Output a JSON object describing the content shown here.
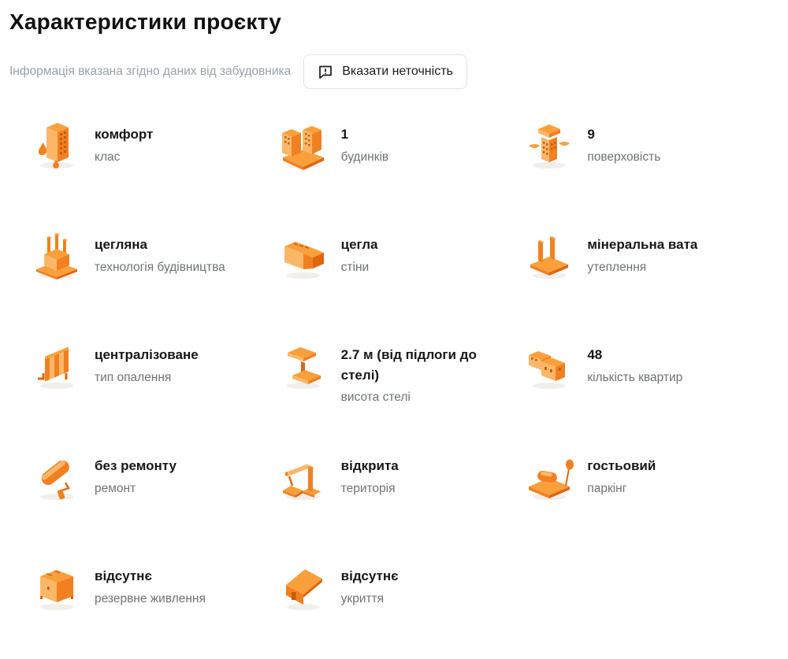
{
  "header": {
    "title": "Характеристики проєкту",
    "disclaimer": "Інформація вказана згідно даних від забудовника",
    "report_button_label": "Вказати неточність",
    "report_button_icon": "report-bubble-icon"
  },
  "colors": {
    "accent_orange": "#F28021",
    "accent_orange_light": "#F9A03C",
    "accent_orange_dark": "#E0650E",
    "title_text": "#111111",
    "muted_text": "#9AA0A6",
    "label_text": "#6F7276",
    "button_border": "#E4E4E4"
  },
  "items": [
    {
      "icon": "building-class-icon",
      "value": "комфорт",
      "label": "клас"
    },
    {
      "icon": "buildings-count-icon",
      "value": "1",
      "label": "будинків"
    },
    {
      "icon": "floors-icon",
      "value": "9",
      "label": "поверховість"
    },
    {
      "icon": "construction-tech-icon",
      "value": "цегляна",
      "label": "технологія будівництва"
    },
    {
      "icon": "walls-icon",
      "value": "цегла",
      "label": "стіни"
    },
    {
      "icon": "insulation-icon",
      "value": "мінеральна вата",
      "label": "утеплення"
    },
    {
      "icon": "heating-icon",
      "value": "централізоване",
      "label": "тип опалення"
    },
    {
      "icon": "ceiling-height-icon",
      "value": "2.7 м (від підлоги до стелі)",
      "label": "висота стелі"
    },
    {
      "icon": "apartments-icon",
      "value": "48",
      "label": "кількість квартир"
    },
    {
      "icon": "renovation-icon",
      "value": "без ремонту",
      "label": "ремонт"
    },
    {
      "icon": "territory-icon",
      "value": "відкрита",
      "label": "територія"
    },
    {
      "icon": "parking-icon",
      "value": "гостьовий",
      "label": "паркінг"
    },
    {
      "icon": "backup-power-icon",
      "value": "відсутнє",
      "label": "резервне живлення"
    },
    {
      "icon": "shelter-icon",
      "value": "відсутнє",
      "label": "укриття"
    }
  ]
}
